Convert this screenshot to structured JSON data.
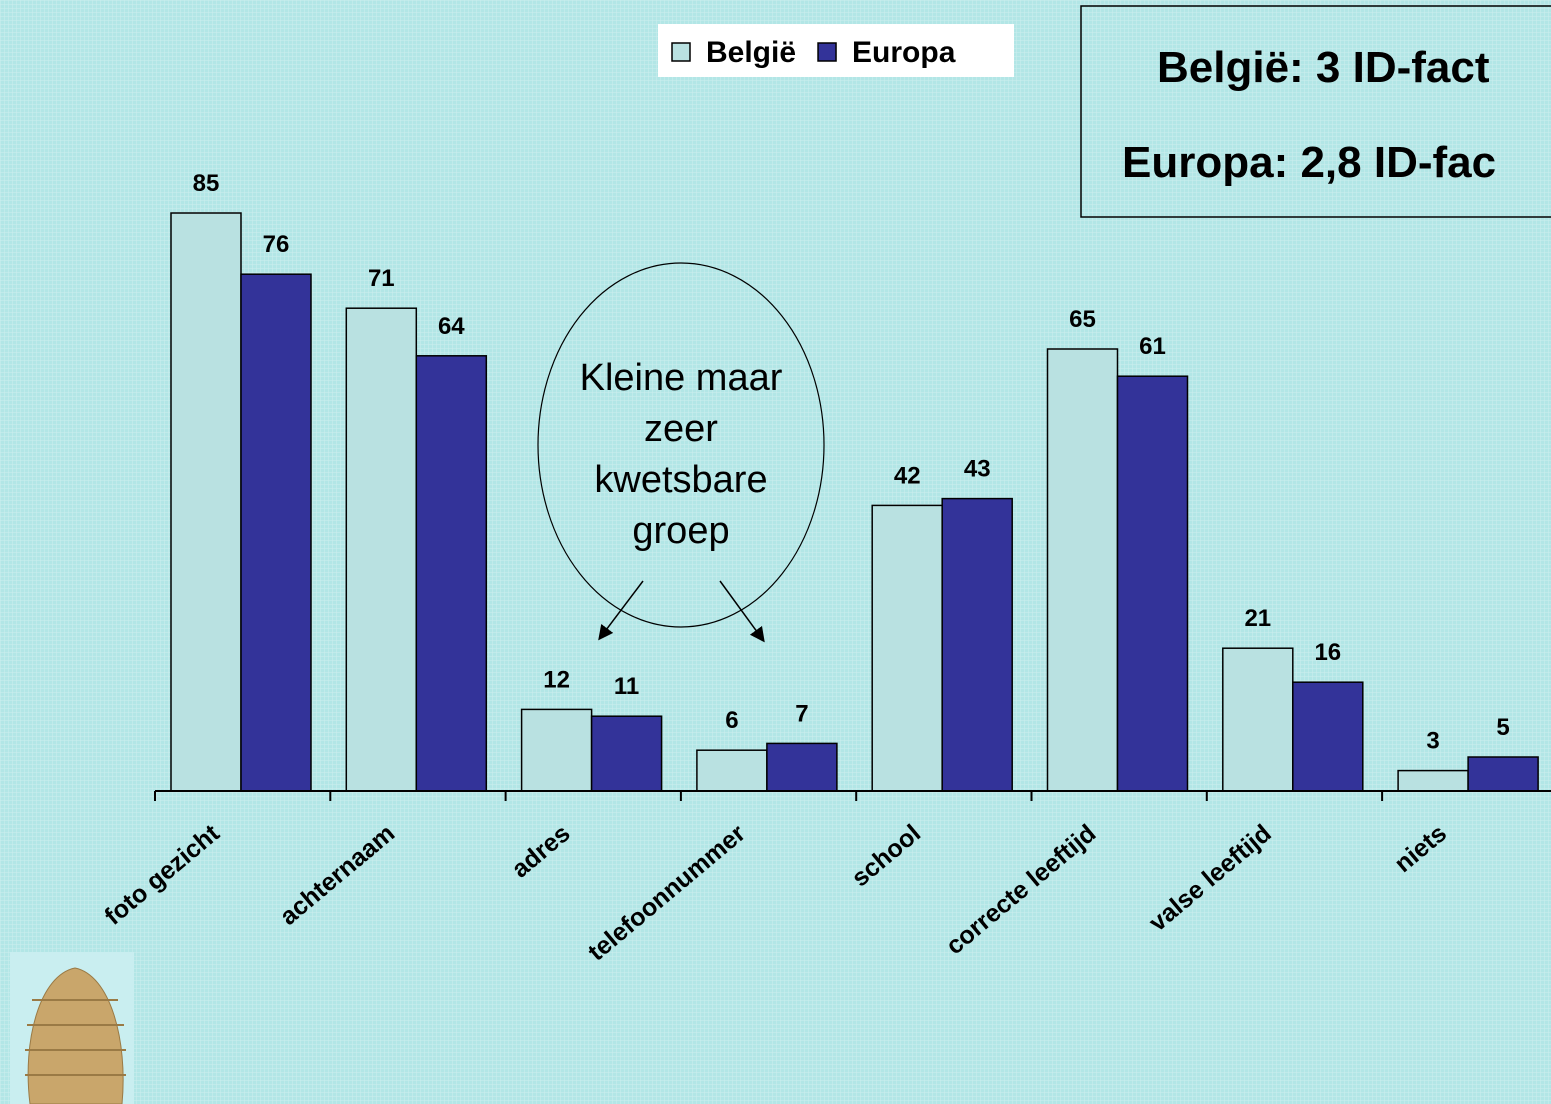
{
  "chart_data": {
    "type": "bar",
    "categories": [
      "foto gezicht",
      "achternaam",
      "adres",
      "telefoonnummer",
      "school",
      "correcte leeftijd",
      "valse leeftijd",
      "niets"
    ],
    "series": [
      {
        "name": "België",
        "color": "#b9e1e1",
        "values": [
          85,
          71,
          12,
          6,
          42,
          65,
          21,
          3
        ]
      },
      {
        "name": "Europa",
        "color": "#333399",
        "values": [
          76,
          64,
          11,
          7,
          43,
          61,
          16,
          5
        ]
      }
    ],
    "ylim": [
      0,
      100
    ],
    "annotations": {
      "ellipse_text": [
        "Kleine maar",
        "zeer",
        "kwetsbare",
        "groep"
      ],
      "box_text": [
        "België: 3 ID-fact",
        "Europa: 2,8 ID-fac"
      ]
    }
  }
}
